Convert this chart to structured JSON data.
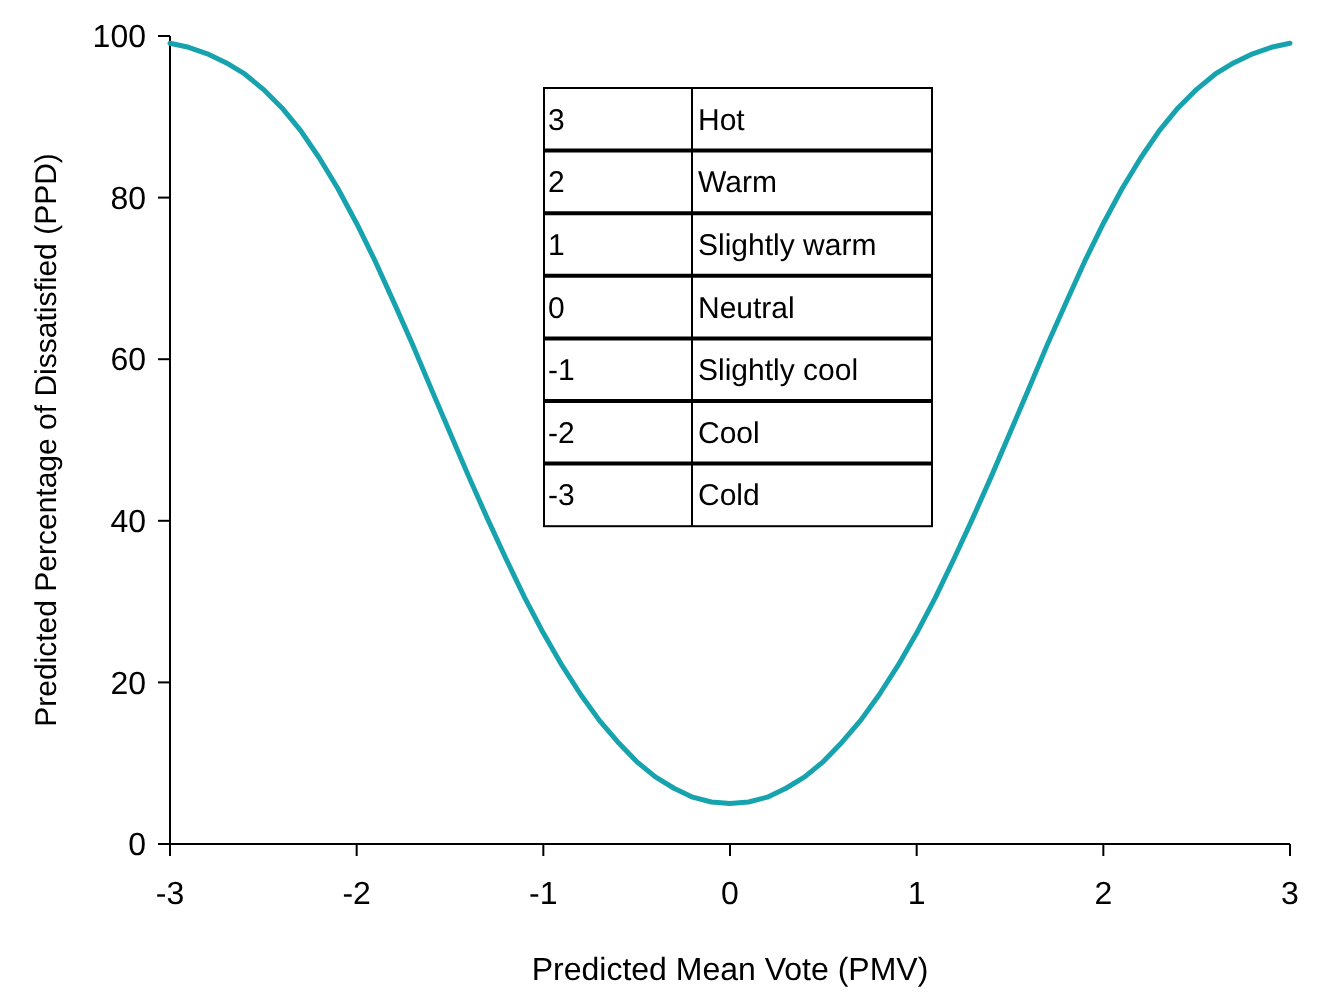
{
  "chart_data": {
    "type": "line",
    "xlabel": "Predicted Mean Vote (PMV)",
    "ylabel": "Predicted Percentage of Dissatisfied (PPD)",
    "x": [
      -3,
      -2.9,
      -2.8,
      -2.7,
      -2.6,
      -2.5,
      -2.4,
      -2.3,
      -2.2,
      -2.1,
      -2,
      -1.9,
      -1.8,
      -1.7,
      -1.6,
      -1.5,
      -1.4,
      -1.3,
      -1.2,
      -1.1,
      -1,
      -0.9,
      -0.8,
      -0.7,
      -0.6,
      -0.5,
      -0.4,
      -0.3,
      -0.2,
      -0.1,
      0,
      0.1,
      0.2,
      0.3,
      0.4,
      0.5,
      0.6,
      0.7,
      0.8,
      0.9,
      1,
      1.1,
      1.2,
      1.3,
      1.4,
      1.5,
      1.6,
      1.7,
      1.8,
      1.9,
      2,
      2.1,
      2.2,
      2.3,
      2.4,
      2.5,
      2.6,
      2.7,
      2.8,
      2.9,
      3
    ],
    "series": [
      {
        "color": "#17a3ae",
        "values": [
          99.1,
          98.6,
          97.8,
          96.7,
          95.3,
          93.4,
          91.1,
          88.3,
          84.9,
          81.1,
          76.8,
          72.1,
          67,
          61.8,
          56.3,
          50.9,
          45.5,
          40.3,
          35.3,
          30.5,
          26.1,
          22.1,
          18.5,
          15.3,
          12.6,
          10.2,
          8.3,
          6.9,
          5.8,
          5.2,
          5,
          5.2,
          5.8,
          6.9,
          8.3,
          10.2,
          12.6,
          15.3,
          18.5,
          22.1,
          26.1,
          30.5,
          35.3,
          40.3,
          45.5,
          50.9,
          56.3,
          61.8,
          67,
          72.1,
          76.8,
          81.1,
          84.9,
          88.3,
          91.1,
          93.4,
          95.3,
          96.7,
          97.8,
          98.6,
          99.1
        ]
      }
    ],
    "xlim": [
      -3,
      3
    ],
    "xticks": [
      -3,
      -2,
      -1,
      0,
      1,
      2,
      3
    ],
    "ylim": [
      0,
      100
    ],
    "yticks": [
      0,
      20,
      40,
      60,
      80,
      100
    ],
    "grid": false,
    "marker": "none",
    "line_style": "solid",
    "annotations": [
      "3",
      "Hot",
      "2",
      "Warm",
      "1",
      "Slightly warm",
      "0",
      "Neutral",
      "-1",
      "Slightly cool",
      "-2",
      "Cool",
      "-3",
      "Cold"
    ]
  }
}
